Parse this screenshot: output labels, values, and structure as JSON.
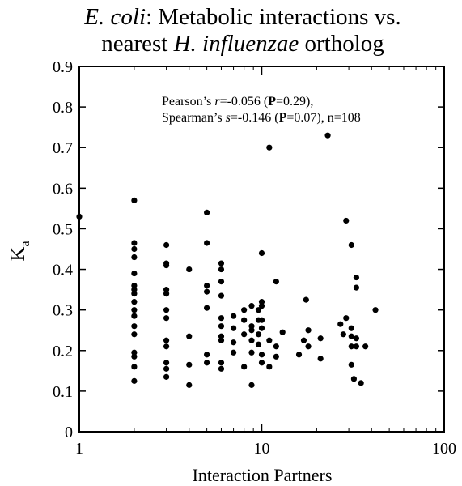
{
  "chart_data": {
    "type": "scatter",
    "title_line1": {
      "italic": "E. coli",
      "rest": ": Metabolic interactions vs."
    },
    "title_line2": {
      "pre": "nearest ",
      "italic": "H. influenzae",
      "rest": " ortholog"
    },
    "xlabel": "Interaction Partners",
    "ylabel": {
      "main": "K",
      "sub": "a"
    },
    "x_scale": "log",
    "xlim": [
      1,
      100
    ],
    "ylim": [
      0,
      0.9
    ],
    "x_ticks": [
      1,
      10,
      100
    ],
    "x_tick_labels": [
      "1",
      "10",
      "100"
    ],
    "y_ticks": [
      0,
      0.1,
      0.2,
      0.3,
      0.4,
      0.5,
      0.6,
      0.7,
      0.8,
      0.9
    ],
    "y_tick_labels": [
      "0",
      "0.1",
      "0.2",
      "0.3",
      "0.4",
      "0.5",
      "0.6",
      "0.7",
      "0.8",
      "0.9"
    ],
    "grid": false,
    "annotation_line1": [
      {
        "text": "Pearson’s ",
        "style": "normal"
      },
      {
        "text": "r",
        "style": "italic"
      },
      {
        "text": "=-0.056 (",
        "style": "normal"
      },
      {
        "text": "P",
        "style": "bold"
      },
      {
        "text": "=0.29),",
        "style": "normal"
      }
    ],
    "annotation_line2": [
      {
        "text": "Spearman’s ",
        "style": "normal"
      },
      {
        "text": "s",
        "style": "italic"
      },
      {
        "text": "=-0.146 (",
        "style": "normal"
      },
      {
        "text": "P",
        "style": "bold"
      },
      {
        "text": "=0.07), n=108",
        "style": "normal"
      }
    ],
    "points": [
      [
        1,
        0.53
      ],
      [
        2,
        0.57
      ],
      [
        2,
        0.465
      ],
      [
        2,
        0.45
      ],
      [
        2,
        0.43
      ],
      [
        2,
        0.39
      ],
      [
        2,
        0.36
      ],
      [
        2,
        0.35
      ],
      [
        2,
        0.34
      ],
      [
        2,
        0.32
      ],
      [
        2,
        0.3
      ],
      [
        2,
        0.285
      ],
      [
        2,
        0.26
      ],
      [
        2,
        0.24
      ],
      [
        2,
        0.195
      ],
      [
        2,
        0.185
      ],
      [
        2,
        0.16
      ],
      [
        2,
        0.125
      ],
      [
        3,
        0.46
      ],
      [
        3,
        0.415
      ],
      [
        3,
        0.41
      ],
      [
        3,
        0.35
      ],
      [
        3,
        0.34
      ],
      [
        3,
        0.3
      ],
      [
        3,
        0.28
      ],
      [
        3,
        0.225
      ],
      [
        3,
        0.21
      ],
      [
        3,
        0.17
      ],
      [
        3,
        0.155
      ],
      [
        3,
        0.135
      ],
      [
        4,
        0.4
      ],
      [
        4,
        0.235
      ],
      [
        4,
        0.165
      ],
      [
        4,
        0.115
      ],
      [
        5,
        0.54
      ],
      [
        5,
        0.465
      ],
      [
        5,
        0.36
      ],
      [
        5,
        0.345
      ],
      [
        5,
        0.305
      ],
      [
        5,
        0.19
      ],
      [
        5,
        0.17
      ],
      [
        6,
        0.415
      ],
      [
        6,
        0.4
      ],
      [
        6,
        0.37
      ],
      [
        6,
        0.335
      ],
      [
        6,
        0.28
      ],
      [
        6,
        0.26
      ],
      [
        6,
        0.235
      ],
      [
        6,
        0.225
      ],
      [
        6,
        0.17
      ],
      [
        6,
        0.155
      ],
      [
        7,
        0.285
      ],
      [
        7,
        0.255
      ],
      [
        7,
        0.22
      ],
      [
        7,
        0.195
      ],
      [
        8,
        0.3
      ],
      [
        8,
        0.275
      ],
      [
        8,
        0.24
      ],
      [
        8,
        0.16
      ],
      [
        8.8,
        0.31
      ],
      [
        8.8,
        0.26
      ],
      [
        8.8,
        0.25
      ],
      [
        8.8,
        0.225
      ],
      [
        8.8,
        0.195
      ],
      [
        8.8,
        0.115
      ],
      [
        9.6,
        0.3
      ],
      [
        9.6,
        0.275
      ],
      [
        9.6,
        0.24
      ],
      [
        9.6,
        0.215
      ],
      [
        10,
        0.44
      ],
      [
        10,
        0.32
      ],
      [
        10,
        0.31
      ],
      [
        10,
        0.275
      ],
      [
        10,
        0.255
      ],
      [
        10,
        0.19
      ],
      [
        10,
        0.17
      ],
      [
        11,
        0.7
      ],
      [
        11,
        0.225
      ],
      [
        11,
        0.16
      ],
      [
        12,
        0.37
      ],
      [
        12,
        0.21
      ],
      [
        12,
        0.185
      ],
      [
        13,
        0.245
      ],
      [
        16,
        0.19
      ],
      [
        17,
        0.225
      ],
      [
        17.5,
        0.325
      ],
      [
        18,
        0.25
      ],
      [
        18,
        0.21
      ],
      [
        21,
        0.23
      ],
      [
        21,
        0.18
      ],
      [
        23,
        0.73
      ],
      [
        27,
        0.265
      ],
      [
        28,
        0.24
      ],
      [
        29,
        0.52
      ],
      [
        29,
        0.28
      ],
      [
        31,
        0.46
      ],
      [
        31,
        0.255
      ],
      [
        31,
        0.235
      ],
      [
        31,
        0.21
      ],
      [
        31,
        0.165
      ],
      [
        32,
        0.13
      ],
      [
        33,
        0.38
      ],
      [
        33,
        0.355
      ],
      [
        33,
        0.23
      ],
      [
        33,
        0.21
      ],
      [
        35,
        0.12
      ],
      [
        37,
        0.21
      ],
      [
        42,
        0.3
      ]
    ]
  }
}
